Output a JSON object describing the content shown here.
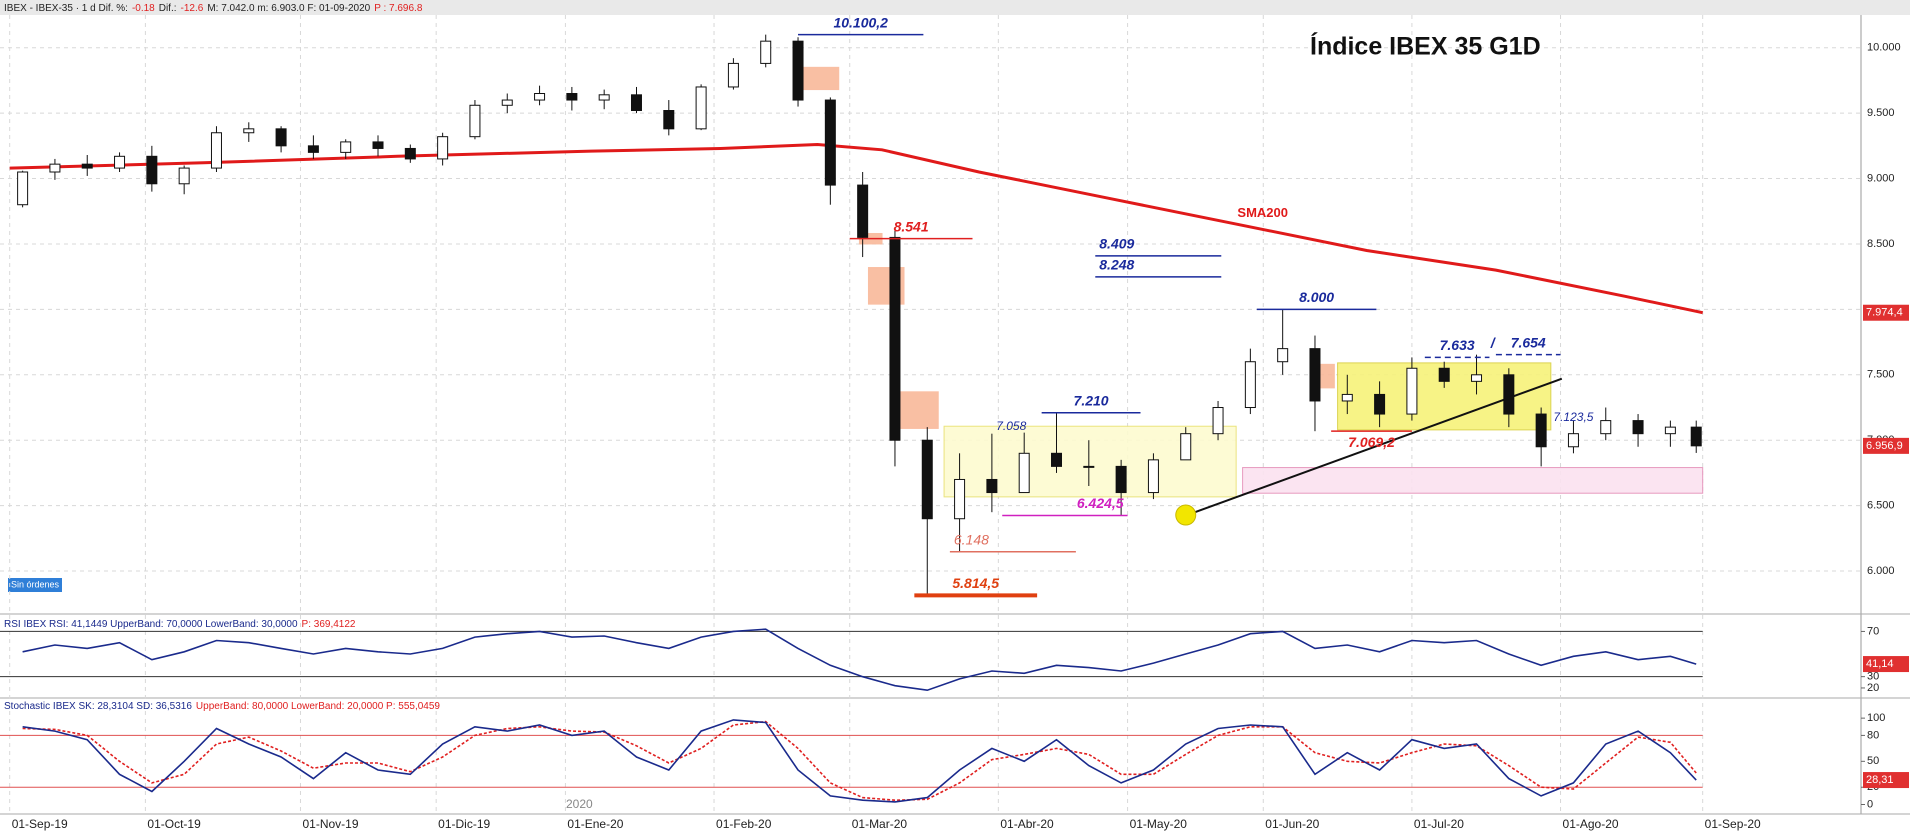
{
  "header": {
    "segments": [
      {
        "text": "IBEX - IBEX-35 · 1 d Dif. %:",
        "color": "#222"
      },
      {
        "text": "-0.18",
        "color": "#e02020"
      },
      {
        "text": "Dif.:",
        "color": "#222"
      },
      {
        "text": "-12.6",
        "color": "#e02020"
      },
      {
        "text": "M: 7.042.0 m: 6.903.0 F: 01-09-2020",
        "color": "#222"
      },
      {
        "text": "P : 7.696.8",
        "color": "#e02020"
      }
    ],
    "badge": "Sin órdenes",
    "year": "2020"
  },
  "chart_data": [
    {
      "type": "candlestick",
      "title": "Índice IBEX 35 G1D",
      "x": [
        2,
        7,
        12,
        17,
        22,
        27,
        32,
        37,
        42,
        47,
        52,
        57,
        62,
        67,
        72,
        77,
        82,
        87,
        92,
        97,
        102,
        107,
        112,
        117,
        122,
        127,
        132,
        137,
        142,
        147,
        152,
        157,
        162,
        167,
        172,
        177,
        182,
        187,
        192,
        197,
        202,
        207,
        212,
        217,
        222,
        227,
        232,
        237,
        242,
        247,
        252,
        257,
        261
      ],
      "candles": {
        "open": [
          8800,
          9050,
          9110,
          9080,
          9170,
          8960,
          9080,
          9350,
          9380,
          9250,
          9200,
          9280,
          9230,
          9150,
          9320,
          9560,
          9600,
          9650,
          9600,
          9640,
          9520,
          9380,
          9700,
          9880,
          10050,
          9600,
          8950,
          8550,
          7000,
          6400,
          6700,
          6600,
          6900,
          6800,
          6800,
          6600,
          6850,
          7050,
          7250,
          7600,
          7700,
          7300,
          7350,
          7200,
          7550,
          7450,
          7500,
          7200,
          6950,
          7050,
          7150,
          7050,
          7100
        ],
        "high": [
          9060,
          9150,
          9180,
          9200,
          9250,
          9100,
          9400,
          9430,
          9400,
          9330,
          9300,
          9330,
          9260,
          9350,
          9600,
          9650,
          9710,
          9700,
          9680,
          9700,
          9600,
          9720,
          9920,
          10100,
          10080,
          9620,
          9050,
          8600,
          7100,
          6900,
          7050,
          7058,
          7210,
          7000,
          6850,
          6900,
          7100,
          7300,
          7700,
          8000,
          7800,
          7500,
          7450,
          7633,
          7600,
          7654,
          7550,
          7250,
          7150,
          7250,
          7200,
          7150,
          7150
        ],
        "low": [
          8780,
          8990,
          9020,
          9050,
          8900,
          8880,
          9050,
          9280,
          9200,
          9150,
          9150,
          9170,
          9120,
          9100,
          9300,
          9500,
          9560,
          9520,
          9530,
          9500,
          9330,
          9370,
          9680,
          9850,
          9550,
          8800,
          8400,
          6800,
          5814,
          6148,
          6450,
          6600,
          6750,
          6650,
          6424,
          6550,
          6850,
          7000,
          7200,
          7500,
          7069,
          7200,
          7100,
          7150,
          7400,
          7350,
          7100,
          6800,
          6900,
          7000,
          6950,
          6950,
          6903
        ],
        "close": [
          9050,
          9110,
          9080,
          9170,
          8960,
          9080,
          9350,
          9380,
          9250,
          9200,
          9280,
          9230,
          9150,
          9320,
          9560,
          9600,
          9650,
          9600,
          9640,
          9520,
          9380,
          9700,
          9880,
          10050,
          9600,
          8950,
          8550,
          7000,
          6400,
          6700,
          6600,
          6900,
          6800,
          6800,
          6600,
          6850,
          7050,
          7250,
          7600,
          7700,
          7300,
          7350,
          7200,
          7550,
          7450,
          7500,
          7200,
          6950,
          7050,
          7150,
          7050,
          7100,
          6957
        ]
      },
      "last_label": {
        "value": 6956.9,
        "label": "6.956,9"
      },
      "sma": {
        "name": "SMA200",
        "color": "#e01a1a",
        "x": [
          0,
          30,
          60,
          90,
          110,
          125,
          135,
          150,
          170,
          190,
          210,
          230,
          250,
          262
        ],
        "values": [
          9080,
          9120,
          9170,
          9210,
          9230,
          9260,
          9220,
          9050,
          8850,
          8650,
          8450,
          8300,
          8100,
          7974.4
        ],
        "last_label": {
          "value": 7974.4,
          "label": "7.974,4"
        }
      },
      "xlim": [
        -1.5,
        286.5
      ],
      "xticks": [
        {
          "value": 0,
          "label": "01-Sep-19"
        },
        {
          "value": 21,
          "label": "01-Oct-19"
        },
        {
          "value": 45,
          "label": "01-Nov-19"
        },
        {
          "value": 66,
          "label": "01-Dic-19"
        },
        {
          "value": 86,
          "label": "01-Ene-20"
        },
        {
          "value": 109,
          "label": "01-Feb-20"
        },
        {
          "value": 130,
          "label": "01-Mar-20"
        },
        {
          "value": 153,
          "label": "01-Abr-20"
        },
        {
          "value": 173,
          "label": "01-May-20"
        },
        {
          "value": 194,
          "label": "01-Jun-20"
        },
        {
          "value": 217,
          "label": "01-Jul-20"
        },
        {
          "value": 240,
          "label": "01-Ago-20"
        },
        {
          "value": 262,
          "label": "01-Sep-20"
        }
      ],
      "ylim": [
        5710,
        10250
      ],
      "yticks": [
        {
          "value": 6000,
          "label": "6.000"
        },
        {
          "value": 6500,
          "label": "6.500"
        },
        {
          "value": 7000,
          "label": "7.000"
        },
        {
          "value": 7500,
          "label": "7.500"
        },
        {
          "value": 8000,
          "label": "8.000"
        },
        {
          "value": 8500,
          "label": "8.500"
        },
        {
          "value": 9000,
          "label": "9.000"
        },
        {
          "value": 9500,
          "label": "9.500"
        },
        {
          "value": 10000,
          "label": "10.000"
        }
      ],
      "zones": [
        {
          "x": [
            144.6,
            189.8
          ],
          "y": [
            6567,
            7107
          ],
          "color": "#fdfbd0",
          "stroke": "#e8e070"
        },
        {
          "x": [
            205.5,
            238.5
          ],
          "y": [
            7079,
            7591
          ],
          "color": "#f7f27a",
          "stroke": "#d8cf40"
        },
        {
          "x": [
            190.8,
            262
          ],
          "y": [
            6595,
            6791
          ],
          "color": "#fbe2f0",
          "stroke": "#e58fb8"
        },
        {
          "x": [
            122,
            128.3
          ],
          "y": [
            9680,
            9850
          ],
          "color": "#f9b99a",
          "stroke": "#f9b99a"
        },
        {
          "x": [
            132.9,
            138.4
          ],
          "y": [
            8040,
            8320
          ],
          "color": "#f9b99a",
          "stroke": "#f9b99a"
        },
        {
          "x": [
            137.3,
            143.7
          ],
          "y": [
            7090,
            7370
          ],
          "color": "#f9b99a",
          "stroke": "#f9b99a"
        },
        {
          "x": [
            131.5,
            135
          ],
          "y": [
            8500,
            8580
          ],
          "color": "#f9b99a",
          "stroke": "#f9b99a"
        },
        {
          "x": [
            202,
            205
          ],
          "y": [
            7400,
            7580
          ],
          "color": "#f9b99a",
          "stroke": "#f9b99a"
        }
      ],
      "annotations": [
        {
          "text": "10.100,2",
          "value": 10100.2,
          "x": [
            122,
            141.4
          ],
          "color": "#1a2a9c"
        },
        {
          "text": "8.541",
          "value": 8541,
          "x": [
            130,
            149
          ],
          "color": "#e02020"
        },
        {
          "text": "8.409",
          "value": 8409,
          "x": [
            168,
            187.5
          ],
          "color": "#1a2a9c"
        },
        {
          "text": "8.248",
          "value": 8248,
          "x": [
            168,
            187.5
          ],
          "color": "#1a2a9c"
        },
        {
          "text": "8.000",
          "value": 8000,
          "x": [
            193,
            211.5
          ],
          "color": "#1a2a9c"
        },
        {
          "text": "7.633",
          "value": 7633,
          "x": [
            219,
            229
          ],
          "color": "#1a2a9c",
          "dash": true
        },
        {
          "text": "7.654",
          "value": 7654,
          "x": [
            230,
            240
          ],
          "color": "#1a2a9c",
          "dash": true
        },
        {
          "text": "7.210",
          "value": 7210,
          "x": [
            159.7,
            175
          ],
          "color": "#1a2a9c"
        },
        {
          "text": "7.069,2",
          "value": 7069.2,
          "x": [
            204.5,
            217
          ],
          "color": "#e02020"
        },
        {
          "text": "6.424,5",
          "value": 6424.5,
          "x": [
            153.6,
            173
          ],
          "color": "#d020c0"
        },
        {
          "text": "6.148",
          "value": 6148,
          "x": [
            145.5,
            165
          ],
          "color": "#e07060"
        },
        {
          "text": "5.814,5",
          "value": 5814.5,
          "x": [
            140,
            159
          ],
          "color": "#e04010"
        }
      ],
      "separator": "/",
      "notes": [
        {
          "text": "7.058",
          "value": 7058,
          "x": 155,
          "color": "#1a2a9c"
        },
        {
          "text": "7.123,5",
          "value": 7123.5,
          "x": 242,
          "color": "#1a2a9c"
        }
      ],
      "trendline": {
        "x": [
          181.2,
          240.2
        ],
        "y": [
          6410,
          7470
        ],
        "color": "#111"
      },
      "marker": {
        "x": 182,
        "y": 6428,
        "color": "#f2e600"
      }
    },
    {
      "type": "line",
      "title": "RSI IBEX RSI: 41,1449 UpperBand: 70,0000 LowerBand: 30,0000",
      "title_extra": "P: 369,4122",
      "x": [
        2,
        7,
        12,
        17,
        22,
        27,
        32,
        37,
        42,
        47,
        52,
        57,
        62,
        67,
        72,
        77,
        82,
        87,
        92,
        97,
        102,
        107,
        112,
        117,
        122,
        127,
        132,
        137,
        142,
        147,
        152,
        157,
        162,
        167,
        172,
        177,
        182,
        187,
        192,
        197,
        202,
        207,
        212,
        217,
        222,
        227,
        232,
        237,
        242,
        247,
        252,
        257,
        261
      ],
      "series": [
        {
          "name": "RSI",
          "color": "#1a2a8c",
          "values": [
            52,
            58,
            55,
            60,
            45,
            52,
            62,
            60,
            55,
            50,
            55,
            52,
            50,
            55,
            65,
            68,
            70,
            65,
            66,
            60,
            55,
            65,
            70,
            72,
            55,
            40,
            30,
            22,
            18,
            28,
            35,
            33,
            40,
            38,
            35,
            42,
            50,
            58,
            68,
            70,
            55,
            58,
            52,
            62,
            60,
            62,
            50,
            40,
            48,
            52,
            45,
            48,
            41.14
          ]
        }
      ],
      "bands": {
        "values": [
          70,
          30
        ],
        "color": "#333"
      },
      "last_label": {
        "value": 41.14,
        "label": "41,14"
      },
      "xlim": [
        -1.5,
        286.5
      ],
      "ylim": [
        12,
        81
      ],
      "yticks": [
        20,
        30,
        70
      ]
    },
    {
      "type": "line",
      "title": "Stochastic IBEX SK: 28,3104 SD: 36,5316",
      "title_extra": "UpperBand: 80,0000 LowerBand: 20,0000 P: 555,0459",
      "x": [
        2,
        7,
        12,
        17,
        22,
        27,
        32,
        37,
        42,
        47,
        52,
        57,
        62,
        67,
        72,
        77,
        82,
        87,
        92,
        97,
        102,
        107,
        112,
        117,
        122,
        127,
        132,
        137,
        142,
        147,
        152,
        157,
        162,
        167,
        172,
        177,
        182,
        187,
        192,
        197,
        202,
        207,
        212,
        217,
        222,
        227,
        232,
        237,
        242,
        247,
        252,
        257,
        261
      ],
      "series": [
        {
          "name": "SK",
          "color": "#1a2a8c",
          "values": [
            90,
            85,
            75,
            35,
            15,
            50,
            88,
            70,
            55,
            30,
            60,
            40,
            35,
            70,
            90,
            85,
            92,
            80,
            85,
            55,
            40,
            85,
            98,
            95,
            40,
            10,
            5,
            3,
            8,
            40,
            65,
            50,
            75,
            45,
            25,
            40,
            70,
            88,
            92,
            90,
            35,
            60,
            40,
            75,
            65,
            70,
            30,
            10,
            25,
            70,
            85,
            60,
            28.31
          ]
        },
        {
          "name": "SD",
          "color": "#e02020",
          "dash": true,
          "values": [
            88,
            87,
            80,
            50,
            25,
            35,
            70,
            78,
            62,
            42,
            48,
            48,
            38,
            55,
            80,
            88,
            90,
            85,
            84,
            68,
            48,
            65,
            92,
            96,
            65,
            25,
            8,
            5,
            6,
            25,
            52,
            58,
            65,
            58,
            35,
            35,
            58,
            80,
            90,
            90,
            60,
            50,
            48,
            60,
            70,
            68,
            45,
            20,
            18,
            48,
            78,
            72,
            36.53
          ]
        }
      ],
      "bands": {
        "values": [
          80,
          20
        ],
        "color": "#e05050"
      },
      "last_label": {
        "value": 28.31,
        "label": "28,31"
      },
      "xlim": [
        -1.5,
        286.5
      ],
      "ylim": [
        -11,
        121
      ],
      "yticks": [
        0,
        20,
        50,
        80,
        100
      ]
    }
  ]
}
